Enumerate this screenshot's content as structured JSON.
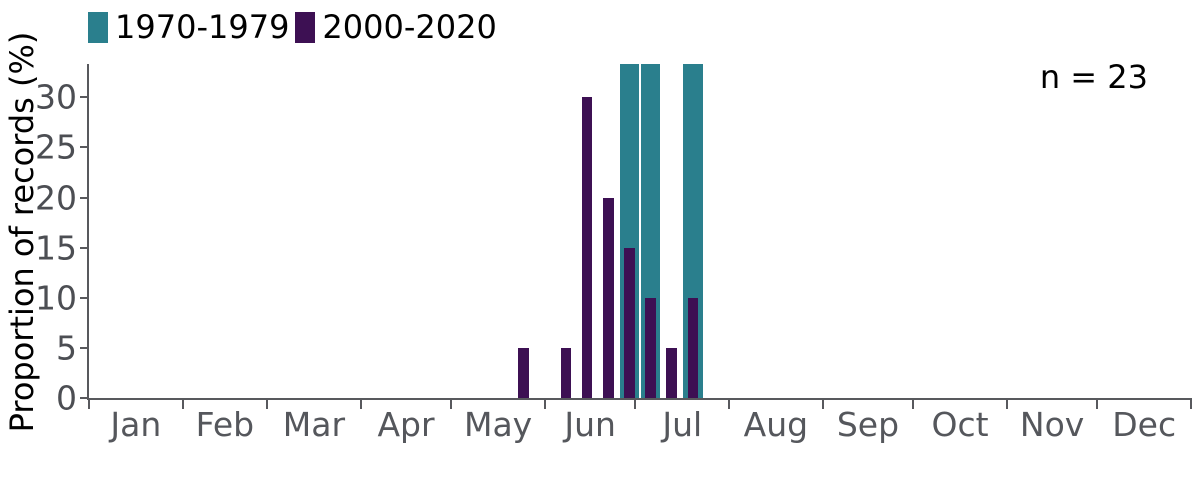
{
  "chart_data": {
    "type": "bar",
    "title": "",
    "xlabel": "",
    "ylabel": "Proportion of records (%)",
    "annotation": "n = 23",
    "ylim": [
      0,
      33.33
    ],
    "y_ticks": [
      0,
      5,
      10,
      15,
      20,
      25,
      30
    ],
    "grid": "off",
    "legend_position": "top-left",
    "x_axis": {
      "unit": "day_of_year",
      "day_range": [
        0,
        365
      ],
      "tick_days": [
        0,
        31,
        59,
        90,
        120,
        151,
        181,
        212,
        243,
        273,
        304,
        334,
        365
      ],
      "month_labels": [
        "Jan",
        "Feb",
        "Mar",
        "Apr",
        "May",
        "Jun",
        "Jul",
        "Aug",
        "Sep",
        "Oct",
        "Nov",
        "Dec"
      ]
    },
    "legend": [
      {
        "label": "1970-1979",
        "color": "#2a7f8d"
      },
      {
        "label": "2000-2020",
        "color": "#3d1053"
      }
    ],
    "series": [
      {
        "name": "1970-1979",
        "color": "#2a7f8d",
        "bar_width_days": 7,
        "points": [
          {
            "week_of": "Jun 28",
            "day": 179,
            "value": 33.3
          },
          {
            "week_of": "Jul 5",
            "day": 186,
            "value": 33.3
          },
          {
            "week_of": "Jul 19",
            "day": 200,
            "value": 33.3
          }
        ]
      },
      {
        "name": "2000-2020",
        "color": "#3d1053",
        "bar_width_days": 4,
        "points": [
          {
            "week_of": "May 24",
            "day": 144,
            "value": 5
          },
          {
            "week_of": "Jun 7",
            "day": 158,
            "value": 5
          },
          {
            "week_of": "Jun 14",
            "day": 165,
            "value": 30
          },
          {
            "week_of": "Jun 21",
            "day": 172,
            "value": 20
          },
          {
            "week_of": "Jun 28",
            "day": 179,
            "value": 15
          },
          {
            "week_of": "Jul 5",
            "day": 186,
            "value": 10
          },
          {
            "week_of": "Jul 12",
            "day": 193,
            "value": 5
          },
          {
            "week_of": "Jul 19",
            "day": 200,
            "value": 10
          }
        ]
      }
    ],
    "axis_colors": {
      "line": "#58595d",
      "y_tick_text": "#4c4e53",
      "x_tick_text": "#55575c"
    }
  }
}
